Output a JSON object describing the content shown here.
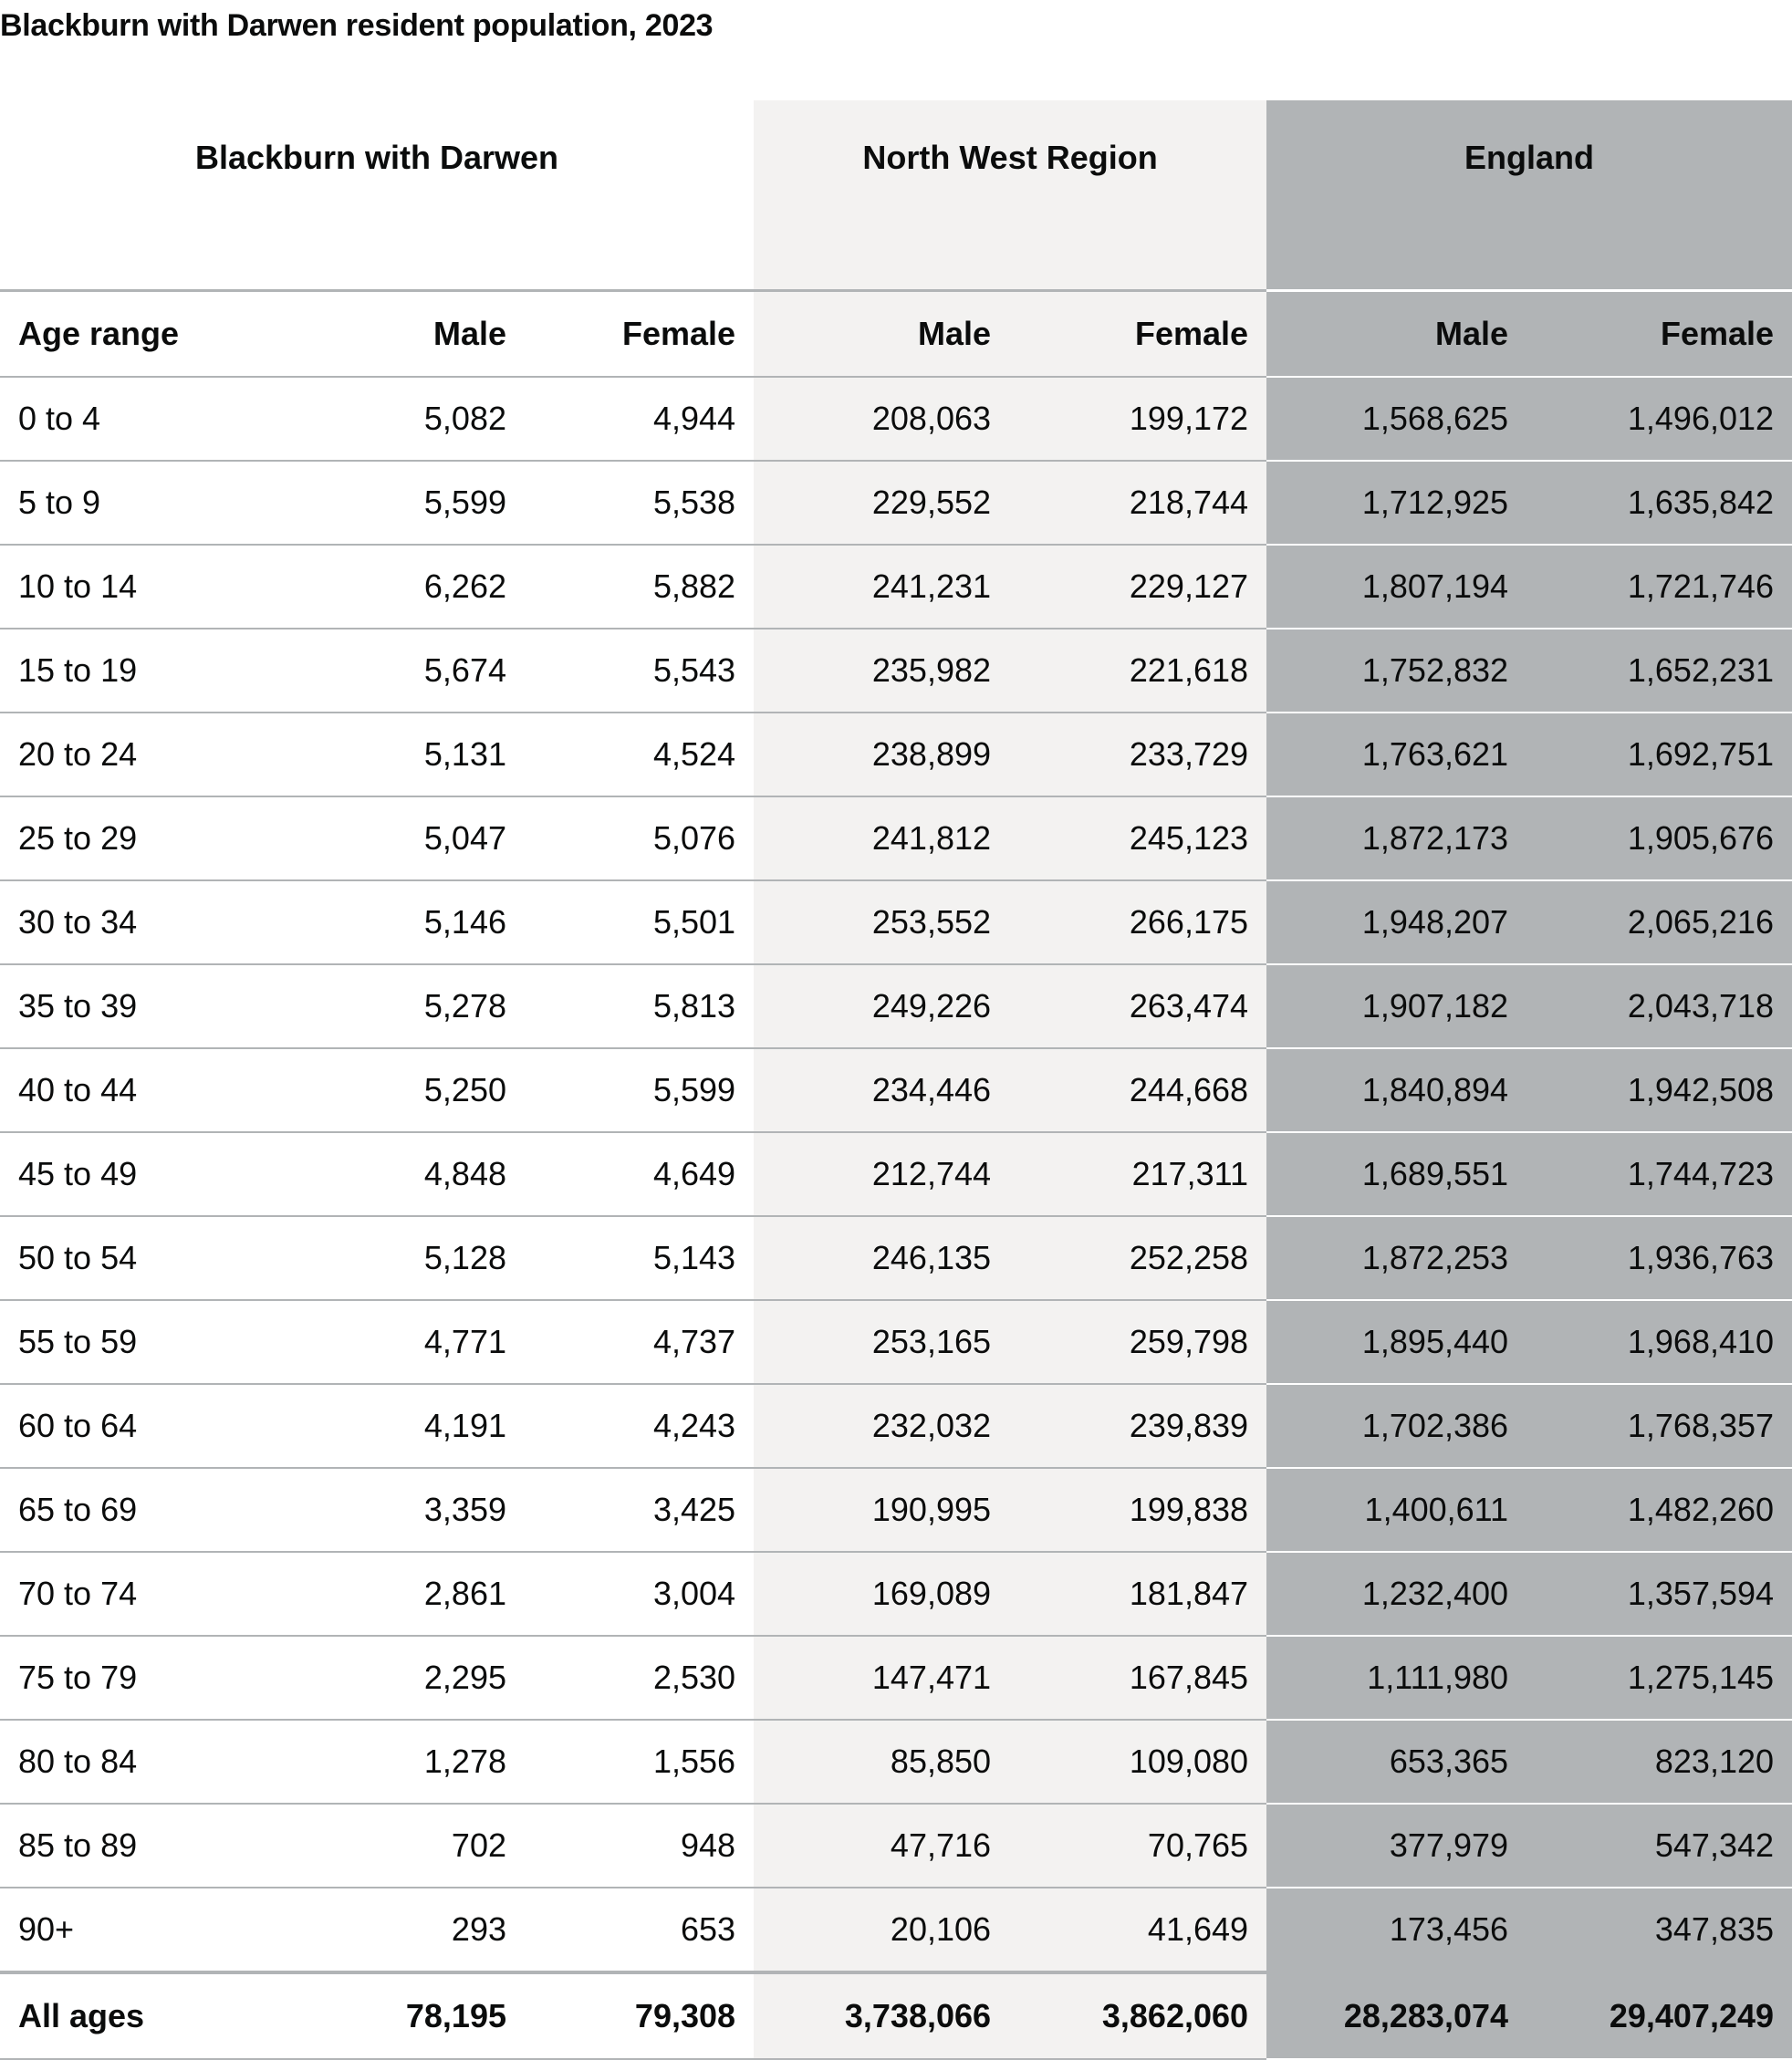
{
  "title": "Blackburn with Darwen resident population, 2023",
  "colors": {
    "north_west_bg": "#f3f2f1",
    "england_bg": "#b1b4b6",
    "rule": "#b1b4b6",
    "text": "#0b0c0c"
  },
  "groups": {
    "local": "Blackburn with Darwen",
    "region": "North West Region",
    "country": "England"
  },
  "headers": {
    "age": "Age range",
    "male": "Male",
    "female": "Female"
  },
  "rows": [
    {
      "age": "0 to 4",
      "bwd_m": "5,082",
      "bwd_f": "4,944",
      "nw_m": "208,063",
      "nw_f": "199,172",
      "en_m": "1,568,625",
      "en_f": "1,496,012"
    },
    {
      "age": "5 to 9",
      "bwd_m": "5,599",
      "bwd_f": "5,538",
      "nw_m": "229,552",
      "nw_f": "218,744",
      "en_m": "1,712,925",
      "en_f": "1,635,842"
    },
    {
      "age": "10 to 14",
      "bwd_m": "6,262",
      "bwd_f": "5,882",
      "nw_m": "241,231",
      "nw_f": "229,127",
      "en_m": "1,807,194",
      "en_f": "1,721,746"
    },
    {
      "age": "15 to 19",
      "bwd_m": "5,674",
      "bwd_f": "5,543",
      "nw_m": "235,982",
      "nw_f": "221,618",
      "en_m": "1,752,832",
      "en_f": "1,652,231"
    },
    {
      "age": "20 to 24",
      "bwd_m": "5,131",
      "bwd_f": "4,524",
      "nw_m": "238,899",
      "nw_f": "233,729",
      "en_m": "1,763,621",
      "en_f": "1,692,751"
    },
    {
      "age": "25 to 29",
      "bwd_m": "5,047",
      "bwd_f": "5,076",
      "nw_m": "241,812",
      "nw_f": "245,123",
      "en_m": "1,872,173",
      "en_f": "1,905,676"
    },
    {
      "age": "30 to 34",
      "bwd_m": "5,146",
      "bwd_f": "5,501",
      "nw_m": "253,552",
      "nw_f": "266,175",
      "en_m": "1,948,207",
      "en_f": "2,065,216"
    },
    {
      "age": "35 to 39",
      "bwd_m": "5,278",
      "bwd_f": "5,813",
      "nw_m": "249,226",
      "nw_f": "263,474",
      "en_m": "1,907,182",
      "en_f": "2,043,718"
    },
    {
      "age": "40 to 44",
      "bwd_m": "5,250",
      "bwd_f": "5,599",
      "nw_m": "234,446",
      "nw_f": "244,668",
      "en_m": "1,840,894",
      "en_f": "1,942,508"
    },
    {
      "age": "45 to 49",
      "bwd_m": "4,848",
      "bwd_f": "4,649",
      "nw_m": "212,744",
      "nw_f": "217,311",
      "en_m": "1,689,551",
      "en_f": "1,744,723"
    },
    {
      "age": "50 to 54",
      "bwd_m": "5,128",
      "bwd_f": "5,143",
      "nw_m": "246,135",
      "nw_f": "252,258",
      "en_m": "1,872,253",
      "en_f": "1,936,763"
    },
    {
      "age": "55 to 59",
      "bwd_m": "4,771",
      "bwd_f": "4,737",
      "nw_m": "253,165",
      "nw_f": "259,798",
      "en_m": "1,895,440",
      "en_f": "1,968,410"
    },
    {
      "age": "60 to 64",
      "bwd_m": "4,191",
      "bwd_f": "4,243",
      "nw_m": "232,032",
      "nw_f": "239,839",
      "en_m": "1,702,386",
      "en_f": "1,768,357"
    },
    {
      "age": "65 to 69",
      "bwd_m": "3,359",
      "bwd_f": "3,425",
      "nw_m": "190,995",
      "nw_f": "199,838",
      "en_m": "1,400,611",
      "en_f": "1,482,260"
    },
    {
      "age": "70 to 74",
      "bwd_m": "2,861",
      "bwd_f": "3,004",
      "nw_m": "169,089",
      "nw_f": "181,847",
      "en_m": "1,232,400",
      "en_f": "1,357,594"
    },
    {
      "age": "75 to 79",
      "bwd_m": "2,295",
      "bwd_f": "2,530",
      "nw_m": "147,471",
      "nw_f": "167,845",
      "en_m": "1,111,980",
      "en_f": "1,275,145"
    },
    {
      "age": "80 to 84",
      "bwd_m": "1,278",
      "bwd_f": "1,556",
      "nw_m": "85,850",
      "nw_f": "109,080",
      "en_m": "653,365",
      "en_f": "823,120"
    },
    {
      "age": "85 to 89",
      "bwd_m": "702",
      "bwd_f": "948",
      "nw_m": "47,716",
      "nw_f": "70,765",
      "en_m": "377,979",
      "en_f": "547,342"
    },
    {
      "age": "90+",
      "bwd_m": "293",
      "bwd_f": "653",
      "nw_m": "20,106",
      "nw_f": "41,649",
      "en_m": "173,456",
      "en_f": "347,835"
    }
  ],
  "total": {
    "age": "All ages",
    "bwd_m": "78,195",
    "bwd_f": "79,308",
    "nw_m": "3,738,066",
    "nw_f": "3,862,060",
    "en_m": "28,283,074",
    "en_f": "29,407,249"
  }
}
